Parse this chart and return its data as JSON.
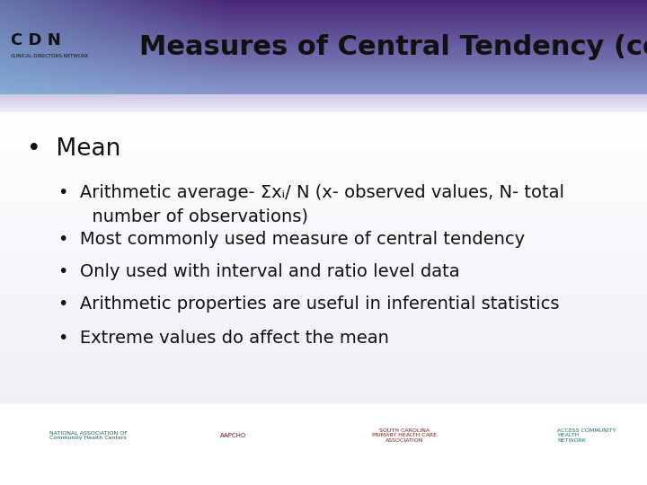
{
  "title": "Measures of Central Tendency (cont.)",
  "header_text_color": "#111111",
  "main_bullet": "Mean",
  "sub_bullets": [
    "Arithmetic average- Σxᵢ/ N (x- observed values, N- total\n      number of observations)",
    "Most commonly used measure of central tendency",
    "Only used with interval and ratio level data",
    "Arithmetic properties are useful in inferential statistics",
    "Extreme values do affect the mean"
  ],
  "main_bullet_fontsize": 19,
  "sub_bullet_fontsize": 14,
  "title_fontsize": 22,
  "header_top_color": "#5a3d8a",
  "header_bottom_color": "#8898cc",
  "header_left_color": "#7ab8d8",
  "lavender_band_color": "#cec8e8",
  "body_bg": "#f5f3f8",
  "cdn_text": "C D N",
  "cdn_sub": "CLINICAL·DIRECTORS·NETWORK"
}
